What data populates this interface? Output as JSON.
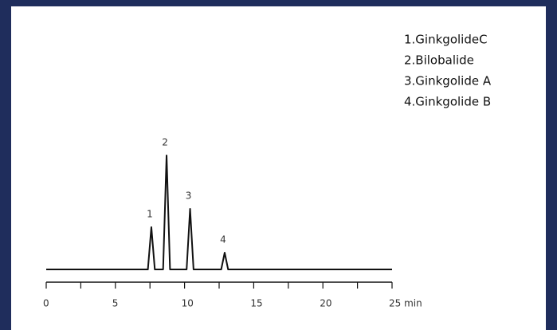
{
  "chart_data": {
    "type": "line",
    "x": [
      0,
      7.35,
      7.6,
      7.85,
      8.45,
      8.7,
      8.95,
      10.15,
      10.4,
      10.65,
      12.65,
      12.9,
      13.15,
      25
    ],
    "series": [
      {
        "color": "#111111",
        "values": [
          0,
          0,
          53,
          0,
          0,
          143,
          0,
          0,
          76,
          0,
          0,
          21,
          0,
          0
        ]
      }
    ],
    "annotations": [
      {
        "text": "1",
        "x": 7.6,
        "y": 53
      },
      {
        "text": "2",
        "x": 8.7,
        "y": 143
      },
      {
        "text": "3",
        "x": 10.4,
        "y": 76
      },
      {
        "text": "4",
        "x": 12.9,
        "y": 21
      }
    ],
    "legend_text": [
      "1.GinkgolideC",
      "2.Bilobalide",
      "3.Ginkgolide A",
      "4.Ginkgolide B"
    ],
    "xlim": [
      0,
      25
    ],
    "xticks": [
      0,
      5,
      10,
      15,
      20,
      {
        "value": 25,
        "label": "25 min"
      }
    ],
    "xminorticks": [
      2.5,
      7.5,
      12.5,
      17.5,
      22.5
    ],
    "ylim": [
      0,
      150
    ]
  }
}
